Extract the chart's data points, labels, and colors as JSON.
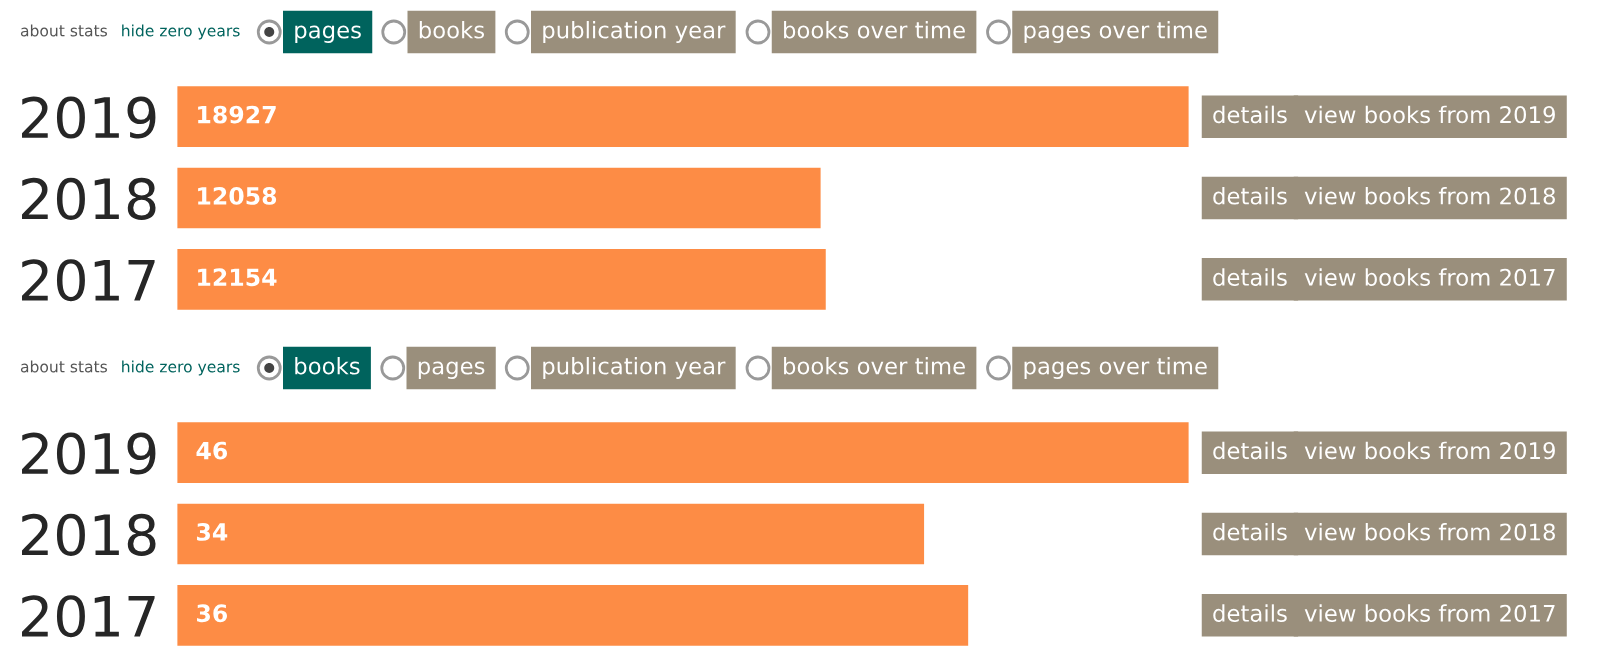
{
  "chart_data": [
    {
      "type": "bar",
      "orientation": "horizontal",
      "title": "pages",
      "categories": [
        "2019",
        "2018",
        "2017"
      ],
      "values": [
        18927,
        12058,
        12154
      ],
      "color": "#fd8c45",
      "data_labels": true,
      "tick_labels": "y",
      "annotations": [
        "about stats",
        "hide zero years",
        "books",
        "publication year",
        "books over time",
        "pages over time",
        "details",
        "view books from 2019",
        "details",
        "view books from 2018",
        "details",
        "view books from 2017"
      ]
    },
    {
      "type": "bar",
      "orientation": "horizontal",
      "title": "books",
      "categories": [
        "2019",
        "2018",
        "2017"
      ],
      "values": [
        46,
        34,
        36
      ],
      "color": "#fd8c45",
      "data_labels": true,
      "tick_labels": "y",
      "annotations": [
        "about stats",
        "hide zero years",
        "pages",
        "publication year",
        "books over time",
        "pages over time",
        "details",
        "view books from 2019",
        "details",
        "view books from 2018",
        "details",
        "view books from 2017"
      ]
    }
  ]
}
